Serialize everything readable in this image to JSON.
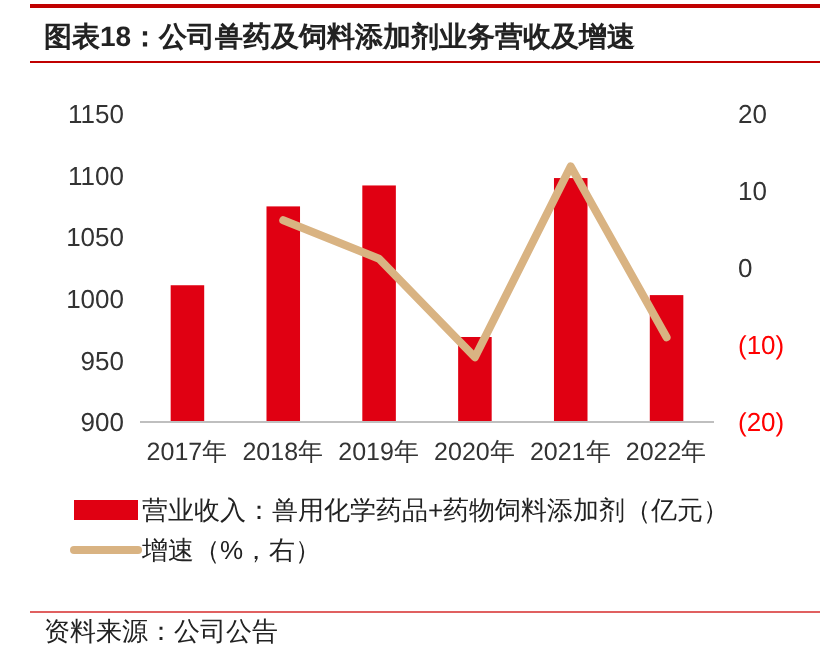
{
  "chart_data": {
    "type": "bar",
    "title": "图表18：公司兽药及饲料添加剂业务营收及增速",
    "categories": [
      "2017年",
      "2018年",
      "2019年",
      "2020年",
      "2021年",
      "2022年"
    ],
    "series": [
      {
        "name": "营业收入：兽用化学药品+药物饲料添加剂（亿元）",
        "color": "#e00012",
        "values": [
          1011,
          1075,
          1092,
          969,
          1098,
          1003
        ]
      },
      {
        "name": "增速（%，右）",
        "type": "line",
        "axis": "y2",
        "color": "#d9b382",
        "values": [
          null,
          6.2,
          1.2,
          -11.6,
          13.2,
          -9.0
        ]
      }
    ],
    "ylim": [
      900,
      1150
    ],
    "yticks": [
      900,
      950,
      1000,
      1050,
      1100,
      1150
    ],
    "y2lim": [
      -20,
      20
    ],
    "y2ticks": [
      {
        "value": -20,
        "label": "(20)"
      },
      {
        "value": -10,
        "label": "(10)"
      },
      0,
      10,
      20
    ],
    "legend": "bottom",
    "grid": false,
    "marker": "none",
    "annotations": [
      "资料来源：公司公告"
    ]
  }
}
